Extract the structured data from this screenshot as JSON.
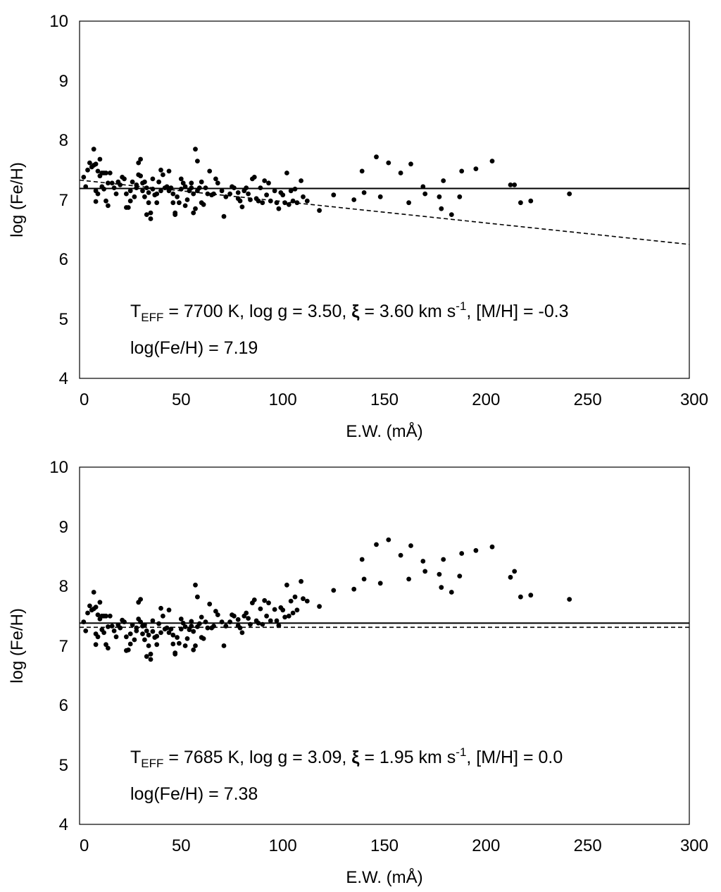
{
  "chart_data": [
    {
      "type": "scatter",
      "panel": "top",
      "xlabel": "E.W. (mÅ)",
      "ylabel": "log (Fe/H)",
      "xlim": [
        0,
        300
      ],
      "ylim": [
        4,
        10
      ],
      "xticks": [
        "0",
        "50",
        "100",
        "150",
        "200",
        "250",
        "300"
      ],
      "yticks": [
        "4",
        "5",
        "6",
        "7",
        "8",
        "9",
        "10"
      ],
      "annotation": {
        "t_symbol": "T",
        "t_sub": "EFF",
        "params_pre": " = 7700 K, log g = 3.50, ",
        "xi": "ξ",
        "params_mid": " = 3.60 km s",
        "params_sup": "-1",
        "params_post": ", [M/H] = -0.3",
        "mean_label": "log(Fe/H) = 7.19"
      },
      "mean_line": {
        "y": 7.19
      },
      "fit_line": {
        "x": [
          0,
          300
        ],
        "y": [
          7.33,
          6.25
        ]
      },
      "points": [
        [
          2,
          7.38
        ],
        [
          3,
          7.22
        ],
        [
          4,
          7.5
        ],
        [
          5,
          7.62
        ],
        [
          6,
          7.55
        ],
        [
          7,
          7.58
        ],
        [
          7,
          7.85
        ],
        [
          8,
          7.6
        ],
        [
          8,
          7.15
        ],
        [
          8,
          6.97
        ],
        [
          9,
          7.1
        ],
        [
          9,
          7.48
        ],
        [
          10,
          7.68
        ],
        [
          10,
          7.4
        ],
        [
          11,
          7.45
        ],
        [
          11,
          7.22
        ],
        [
          12,
          7.45
        ],
        [
          12,
          7.18
        ],
        [
          13,
          7.45
        ],
        [
          13,
          6.98
        ],
        [
          14,
          6.9
        ],
        [
          14,
          7.28
        ],
        [
          15,
          7.45
        ],
        [
          16,
          7.28
        ],
        [
          17,
          7.2
        ],
        [
          18,
          7.1
        ],
        [
          19,
          7.3
        ],
        [
          20,
          7.25
        ],
        [
          21,
          7.38
        ],
        [
          22,
          7.35
        ],
        [
          23,
          7.1
        ],
        [
          23,
          6.87
        ],
        [
          24,
          6.87
        ],
        [
          25,
          7.15
        ],
        [
          25,
          6.98
        ],
        [
          26,
          7.3
        ],
        [
          27,
          7.05
        ],
        [
          28,
          7.25
        ],
        [
          28,
          7.2
        ],
        [
          29,
          7.62
        ],
        [
          29,
          7.42
        ],
        [
          30,
          7.68
        ],
        [
          30,
          7.4
        ],
        [
          31,
          7.28
        ],
        [
          31,
          7.15
        ],
        [
          32,
          7.05
        ],
        [
          32,
          7.3
        ],
        [
          33,
          6.75
        ],
        [
          33,
          7.2
        ],
        [
          34,
          7.12
        ],
        [
          34,
          6.95
        ],
        [
          35,
          6.78
        ],
        [
          35,
          6.68
        ],
        [
          36,
          7.35
        ],
        [
          36,
          7.18
        ],
        [
          37,
          7.08
        ],
        [
          38,
          7.1
        ],
        [
          38,
          6.95
        ],
        [
          39,
          7.3
        ],
        [
          40,
          7.5
        ],
        [
          40,
          7.15
        ],
        [
          41,
          7.42
        ],
        [
          42,
          7.2
        ],
        [
          43,
          7.22
        ],
        [
          44,
          7.48
        ],
        [
          44,
          7.15
        ],
        [
          45,
          7.2
        ],
        [
          46,
          7.1
        ],
        [
          46,
          6.95
        ],
        [
          47,
          6.78
        ],
        [
          47,
          6.75
        ],
        [
          48,
          7.05
        ],
        [
          49,
          6.95
        ],
        [
          50,
          7.18
        ],
        [
          50,
          7.35
        ],
        [
          51,
          7.28
        ],
        [
          52,
          7.22
        ],
        [
          52,
          6.9
        ],
        [
          53,
          7.0
        ],
        [
          54,
          7.15
        ],
        [
          55,
          7.28
        ],
        [
          55,
          7.2
        ],
        [
          56,
          7.1
        ],
        [
          56,
          6.78
        ],
        [
          57,
          6.85
        ],
        [
          57,
          7.85
        ],
        [
          58,
          7.65
        ],
        [
          58,
          7.15
        ],
        [
          59,
          7.2
        ],
        [
          60,
          7.3
        ],
        [
          60,
          6.95
        ],
        [
          61,
          6.92
        ],
        [
          62,
          7.2
        ],
        [
          63,
          7.1
        ],
        [
          64,
          7.48
        ],
        [
          65,
          7.08
        ],
        [
          66,
          7.1
        ],
        [
          67,
          7.35
        ],
        [
          68,
          7.28
        ],
        [
          70,
          7.15
        ],
        [
          71,
          6.72
        ],
        [
          72,
          7.05
        ],
        [
          74,
          7.1
        ],
        [
          75,
          7.22
        ],
        [
          76,
          7.2
        ],
        [
          78,
          7.12
        ],
        [
          78,
          7.02
        ],
        [
          79,
          6.98
        ],
        [
          80,
          6.88
        ],
        [
          81,
          7.15
        ],
        [
          82,
          7.2
        ],
        [
          83,
          7.1
        ],
        [
          84,
          7.0
        ],
        [
          85,
          7.35
        ],
        [
          86,
          7.38
        ],
        [
          87,
          7.02
        ],
        [
          88,
          6.98
        ],
        [
          89,
          7.2
        ],
        [
          90,
          6.95
        ],
        [
          91,
          7.32
        ],
        [
          92,
          7.08
        ],
        [
          93,
          7.28
        ],
        [
          94,
          6.98
        ],
        [
          96,
          7.15
        ],
        [
          97,
          6.95
        ],
        [
          98,
          6.85
        ],
        [
          99,
          7.12
        ],
        [
          100,
          7.08
        ],
        [
          101,
          6.95
        ],
        [
          102,
          7.45
        ],
        [
          103,
          6.92
        ],
        [
          104,
          7.15
        ],
        [
          105,
          6.98
        ],
        [
          106,
          7.18
        ],
        [
          107,
          6.95
        ],
        [
          109,
          7.32
        ],
        [
          110,
          7.05
        ],
        [
          112,
          6.98
        ],
        [
          118,
          6.82
        ],
        [
          125,
          7.08
        ],
        [
          135,
          7.0
        ],
        [
          139,
          7.48
        ],
        [
          140,
          7.12
        ],
        [
          146,
          7.72
        ],
        [
          148,
          7.05
        ],
        [
          152,
          7.62
        ],
        [
          158,
          7.45
        ],
        [
          162,
          6.95
        ],
        [
          163,
          7.6
        ],
        [
          169,
          7.22
        ],
        [
          170,
          7.1
        ],
        [
          177,
          7.05
        ],
        [
          178,
          6.85
        ],
        [
          179,
          7.32
        ],
        [
          183,
          6.75
        ],
        [
          187,
          7.05
        ],
        [
          188,
          7.48
        ],
        [
          195,
          7.52
        ],
        [
          203,
          7.65
        ],
        [
          212,
          7.25
        ],
        [
          214,
          7.25
        ],
        [
          217,
          6.95
        ],
        [
          222,
          6.98
        ],
        [
          241,
          7.1
        ]
      ]
    },
    {
      "type": "scatter",
      "panel": "bottom",
      "xlabel": "E.W. (mÅ)",
      "ylabel": "log (Fe/H)",
      "xlim": [
        0,
        300
      ],
      "ylim": [
        4,
        10
      ],
      "xticks": [
        "0",
        "50",
        "100",
        "150",
        "200",
        "250",
        "300"
      ],
      "yticks": [
        "4",
        "5",
        "6",
        "7",
        "8",
        "9",
        "10"
      ],
      "annotation": {
        "t_symbol": "T",
        "t_sub": "EFF",
        "params_pre": " = 7685 K, log g = 3.09, ",
        "xi": "ξ",
        "params_mid": " = 1.95 km s",
        "params_sup": "-1",
        "params_post": ", [M/H] = 0.0",
        "mean_label": "log(Fe/H) = 7.38"
      },
      "mean_line": {
        "y": 7.38
      },
      "fit_line": {
        "x": [
          0,
          300
        ],
        "y": [
          7.31,
          7.31
        ]
      },
      "points": [
        [
          2,
          7.4
        ],
        [
          3,
          7.25
        ],
        [
          4,
          7.55
        ],
        [
          5,
          7.67
        ],
        [
          6,
          7.6
        ],
        [
          7,
          7.62
        ],
        [
          7,
          7.9
        ],
        [
          8,
          7.65
        ],
        [
          8,
          7.2
        ],
        [
          8,
          7.02
        ],
        [
          9,
          7.15
        ],
        [
          9,
          7.52
        ],
        [
          10,
          7.73
        ],
        [
          10,
          7.45
        ],
        [
          11,
          7.5
        ],
        [
          11,
          7.27
        ],
        [
          12,
          7.5
        ],
        [
          12,
          7.22
        ],
        [
          13,
          7.5
        ],
        [
          13,
          7.02
        ],
        [
          14,
          6.96
        ],
        [
          14,
          7.32
        ],
        [
          15,
          7.5
        ],
        [
          16,
          7.33
        ],
        [
          17,
          7.25
        ],
        [
          18,
          7.15
        ],
        [
          19,
          7.35
        ],
        [
          20,
          7.3
        ],
        [
          21,
          7.43
        ],
        [
          22,
          7.4
        ],
        [
          23,
          7.15
        ],
        [
          23,
          6.92
        ],
        [
          24,
          6.93
        ],
        [
          25,
          7.2
        ],
        [
          25,
          7.03
        ],
        [
          26,
          7.35
        ],
        [
          27,
          7.1
        ],
        [
          28,
          7.3
        ],
        [
          28,
          7.25
        ],
        [
          29,
          7.73
        ],
        [
          29,
          7.45
        ],
        [
          30,
          7.78
        ],
        [
          30,
          7.4
        ],
        [
          31,
          7.33
        ],
        [
          31,
          7.2
        ],
        [
          32,
          7.1
        ],
        [
          32,
          7.35
        ],
        [
          33,
          6.82
        ],
        [
          33,
          7.25
        ],
        [
          34,
          7.18
        ],
        [
          34,
          7.0
        ],
        [
          35,
          6.86
        ],
        [
          35,
          6.77
        ],
        [
          36,
          7.42
        ],
        [
          36,
          7.24
        ],
        [
          37,
          7.14
        ],
        [
          38,
          7.16
        ],
        [
          38,
          7.02
        ],
        [
          39,
          7.37
        ],
        [
          40,
          7.63
        ],
        [
          40,
          7.22
        ],
        [
          41,
          7.5
        ],
        [
          42,
          7.28
        ],
        [
          43,
          7.3
        ],
        [
          44,
          7.6
        ],
        [
          44,
          7.22
        ],
        [
          45,
          7.28
        ],
        [
          46,
          7.18
        ],
        [
          46,
          7.03
        ],
        [
          47,
          6.88
        ],
        [
          47,
          6.86
        ],
        [
          48,
          7.14
        ],
        [
          49,
          7.04
        ],
        [
          50,
          7.28
        ],
        [
          50,
          7.45
        ],
        [
          51,
          7.38
        ],
        [
          52,
          7.32
        ],
        [
          52,
          7.0
        ],
        [
          53,
          7.12
        ],
        [
          54,
          7.27
        ],
        [
          55,
          7.41
        ],
        [
          55,
          7.33
        ],
        [
          56,
          7.24
        ],
        [
          56,
          6.93
        ],
        [
          57,
          7.0
        ],
        [
          57,
          8.02
        ],
        [
          58,
          7.82
        ],
        [
          58,
          7.32
        ],
        [
          59,
          7.37
        ],
        [
          60,
          7.48
        ],
        [
          60,
          7.14
        ],
        [
          61,
          7.12
        ],
        [
          62,
          7.4
        ],
        [
          63,
          7.3
        ],
        [
          64,
          7.7
        ],
        [
          65,
          7.3
        ],
        [
          66,
          7.33
        ],
        [
          67,
          7.58
        ],
        [
          68,
          7.52
        ],
        [
          70,
          7.4
        ],
        [
          71,
          7.0
        ],
        [
          72,
          7.33
        ],
        [
          74,
          7.4
        ],
        [
          75,
          7.52
        ],
        [
          76,
          7.5
        ],
        [
          78,
          7.44
        ],
        [
          78,
          7.34
        ],
        [
          79,
          7.3
        ],
        [
          80,
          7.22
        ],
        [
          81,
          7.5
        ],
        [
          82,
          7.55
        ],
        [
          83,
          7.46
        ],
        [
          84,
          7.36
        ],
        [
          85,
          7.72
        ],
        [
          86,
          7.77
        ],
        [
          87,
          7.42
        ],
        [
          88,
          7.38
        ],
        [
          89,
          7.62
        ],
        [
          90,
          7.36
        ],
        [
          91,
          7.76
        ],
        [
          92,
          7.5
        ],
        [
          93,
          7.72
        ],
        [
          94,
          7.42
        ],
        [
          96,
          7.61
        ],
        [
          97,
          7.42
        ],
        [
          98,
          7.34
        ],
        [
          99,
          7.64
        ],
        [
          100,
          7.6
        ],
        [
          101,
          7.48
        ],
        [
          102,
          8.02
        ],
        [
          103,
          7.5
        ],
        [
          104,
          7.75
        ],
        [
          105,
          7.55
        ],
        [
          106,
          7.82
        ],
        [
          107,
          7.6
        ],
        [
          109,
          8.08
        ],
        [
          110,
          7.79
        ],
        [
          112,
          7.75
        ],
        [
          118,
          7.66
        ],
        [
          125,
          7.93
        ],
        [
          135,
          7.95
        ],
        [
          139,
          8.45
        ],
        [
          140,
          8.12
        ],
        [
          146,
          8.7
        ],
        [
          148,
          8.05
        ],
        [
          152,
          8.78
        ],
        [
          158,
          8.52
        ],
        [
          162,
          8.12
        ],
        [
          163,
          8.68
        ],
        [
          169,
          8.42
        ],
        [
          170,
          8.25
        ],
        [
          177,
          8.2
        ],
        [
          178,
          7.98
        ],
        [
          179,
          8.45
        ],
        [
          183,
          7.9
        ],
        [
          187,
          8.17
        ],
        [
          188,
          8.55
        ],
        [
          195,
          8.6
        ],
        [
          203,
          8.66
        ],
        [
          212,
          8.15
        ],
        [
          214,
          8.25
        ],
        [
          217,
          7.82
        ],
        [
          222,
          7.85
        ],
        [
          241,
          7.78
        ]
      ]
    }
  ]
}
